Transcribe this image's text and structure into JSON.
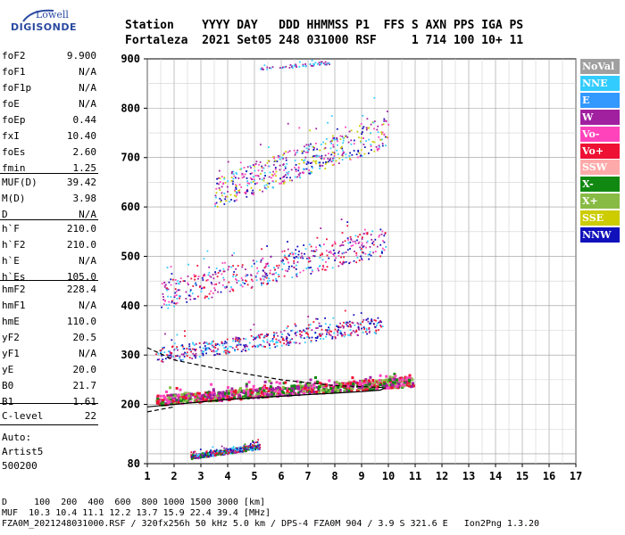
{
  "logo": {
    "line1": "Lowell",
    "line2": "DIGISONDE"
  },
  "header": {
    "line1": "Station    YYYY DAY   DDD HHMMSS P1  FFS S AXN PPS IGA PS",
    "line2": "Fortaleza  2021 Set05 248 031000 RSF     1 714 100 10+ 11"
  },
  "params": [
    {
      "k": "foF2",
      "v": "9.900"
    },
    {
      "k": "foF1",
      "v": "N/A"
    },
    {
      "k": "foF1p",
      "v": "N/A"
    },
    {
      "k": "foE",
      "v": "N/A"
    },
    {
      "k": "foEp",
      "v": "0.44"
    },
    {
      "k": "fxI",
      "v": "10.40"
    },
    {
      "k": "foEs",
      "v": "2.60"
    },
    {
      "k": "fmin",
      "v": "1.25"
    },
    {
      "k": "MUF(D)",
      "v": "39.42"
    },
    {
      "k": "M(D)",
      "v": "3.98"
    },
    {
      "k": "D",
      "v": "N/A"
    },
    {
      "k": "h`F",
      "v": "210.0"
    },
    {
      "k": "h`F2",
      "v": "210.0"
    },
    {
      "k": "h`E",
      "v": "N/A"
    },
    {
      "k": "h`Es",
      "v": "105.0"
    },
    {
      "k": "hmF2",
      "v": "228.4"
    },
    {
      "k": "hmF1",
      "v": "N/A"
    },
    {
      "k": "hmE",
      "v": "110.0"
    },
    {
      "k": "yF2",
      "v": "20.5"
    },
    {
      "k": "yF1",
      "v": "N/A"
    },
    {
      "k": "yE",
      "v": "20.0"
    },
    {
      "k": "B0",
      "v": "21.7"
    },
    {
      "k": "B1",
      "v": "1.61"
    },
    {
      "k": "C-level",
      "v": "22"
    }
  ],
  "auto": {
    "line1": "Auto:",
    "line2": "Artist5",
    "line3": "500200"
  },
  "legend": [
    {
      "label": "NoVal",
      "color": "#a0a0a0"
    },
    {
      "label": "NNE",
      "color": "#33ccff"
    },
    {
      "label": "E",
      "color": "#3399ff"
    },
    {
      "label": "W",
      "color": "#a020a0"
    },
    {
      "label": "Vo-",
      "color": "#ff44bb"
    },
    {
      "label": "Vo+",
      "color": "#ee1133"
    },
    {
      "label": "SSW",
      "color": "#ffaaaa"
    },
    {
      "label": "X-",
      "color": "#118811"
    },
    {
      "label": "X+",
      "color": "#88bb44"
    },
    {
      "label": "SSE",
      "color": "#cccc00"
    },
    {
      "label": "NNW",
      "color": "#1111bb"
    }
  ],
  "footer": {
    "line1": "D     100  200  400  600  800 1000 1500 3000 [km]",
    "line2": "MUF  10.3 10.4 11.1 12.2 13.7 15.9 22.4 39.4 [MHz]",
    "line3": "FZA0M_2021248031000.RSF / 320fx256h 50 kHz 5.0 km / DPS-4 FZA0M 904 / 3.9 S 321.6 E   Ion2Png 1.3.20"
  },
  "chart_data": {
    "type": "scatter",
    "title": "",
    "xlabel": "",
    "ylabel": "",
    "xlim": [
      1,
      17
    ],
    "ylim": [
      80,
      900
    ],
    "x_ticks": [
      1,
      2,
      3,
      4,
      5,
      6,
      7,
      8,
      9,
      10,
      11,
      12,
      13,
      14,
      15,
      16,
      17
    ],
    "y_ticks": [
      80,
      200,
      300,
      400,
      500,
      600,
      700,
      800,
      900
    ],
    "grid": true,
    "legend_placement": "right",
    "traces": [
      {
        "name": "Es",
        "x_range": [
          2.6,
          5.2
        ],
        "h_range": [
          95,
          125
        ],
        "color_mix": [
          "#ee1133",
          "#a020a0",
          "#33ccff",
          "#118811",
          "#1111bb"
        ]
      },
      {
        "name": "F-O",
        "x_range": [
          1.3,
          10.9
        ],
        "h_range": [
          210,
          265
        ],
        "color_mix": [
          "#ee1133",
          "#ff44bb",
          "#118811",
          "#88bb44",
          "#a020a0"
        ]
      },
      {
        "name": "F-2hop",
        "x_range": [
          1.3,
          9.8
        ],
        "h_range": [
          300,
          390
        ],
        "color_mix": [
          "#a020a0",
          "#ee1133",
          "#33ccff",
          "#1111bb"
        ]
      },
      {
        "name": "F-3hop",
        "x_range": [
          1.5,
          9.9
        ],
        "h_range": [
          420,
          580
        ],
        "color_mix": [
          "#ee1133",
          "#a020a0",
          "#ff44bb",
          "#1111bb",
          "#33ccff"
        ]
      },
      {
        "name": "F-4hop",
        "x_range": [
          3.5,
          10.0
        ],
        "h_range": [
          630,
          810
        ],
        "color_mix": [
          "#33ccff",
          "#a020a0",
          "#cccc00",
          "#1111bb",
          "#ff44bb"
        ]
      },
      {
        "name": "F-5hop",
        "x_range": [
          5.2,
          7.8
        ],
        "h_range": [
          880,
          900
        ],
        "color_mix": [
          "#a020a0",
          "#33ccff"
        ]
      }
    ],
    "profile_curves": [
      {
        "name": "profile-solid",
        "points": [
          [
            1.0,
            195
          ],
          [
            4.0,
            210
          ],
          [
            7.0,
            220
          ],
          [
            9.0,
            226
          ],
          [
            9.7,
            229
          ],
          [
            9.9,
            234
          ]
        ]
      },
      {
        "name": "profile-dashed-upper",
        "points": [
          [
            1.0,
            315
          ],
          [
            2.0,
            290
          ],
          [
            4.0,
            268
          ],
          [
            6.0,
            250
          ],
          [
            8.0,
            238
          ],
          [
            9.9,
            234
          ]
        ]
      },
      {
        "name": "profile-dashed-lower",
        "points": [
          [
            1.0,
            185
          ],
          [
            2.0,
            195
          ]
        ]
      }
    ]
  }
}
